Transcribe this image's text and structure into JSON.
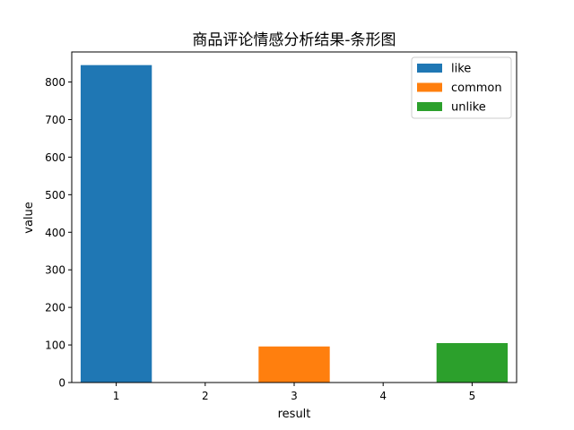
{
  "chart_data": {
    "type": "bar",
    "title": "商品评论情感分析结果-条形图",
    "xlabel": "result",
    "ylabel": "value",
    "xlim": [
      0.5,
      5.5
    ],
    "ylim": [
      0,
      880
    ],
    "xticks": [
      "1",
      "2",
      "3",
      "4",
      "5"
    ],
    "yticks": [
      "0",
      "100",
      "200",
      "300",
      "400",
      "500",
      "600",
      "700",
      "800"
    ],
    "bar_width": 0.8,
    "legend_position": "top-right",
    "grid": false,
    "series": [
      {
        "name": "like",
        "color": "#1f77b4",
        "x": 1,
        "value": 845
      },
      {
        "name": "common",
        "color": "#ff7f0e",
        "x": 3,
        "value": 96
      },
      {
        "name": "unlike",
        "color": "#2ca02c",
        "x": 5,
        "value": 105
      }
    ]
  }
}
